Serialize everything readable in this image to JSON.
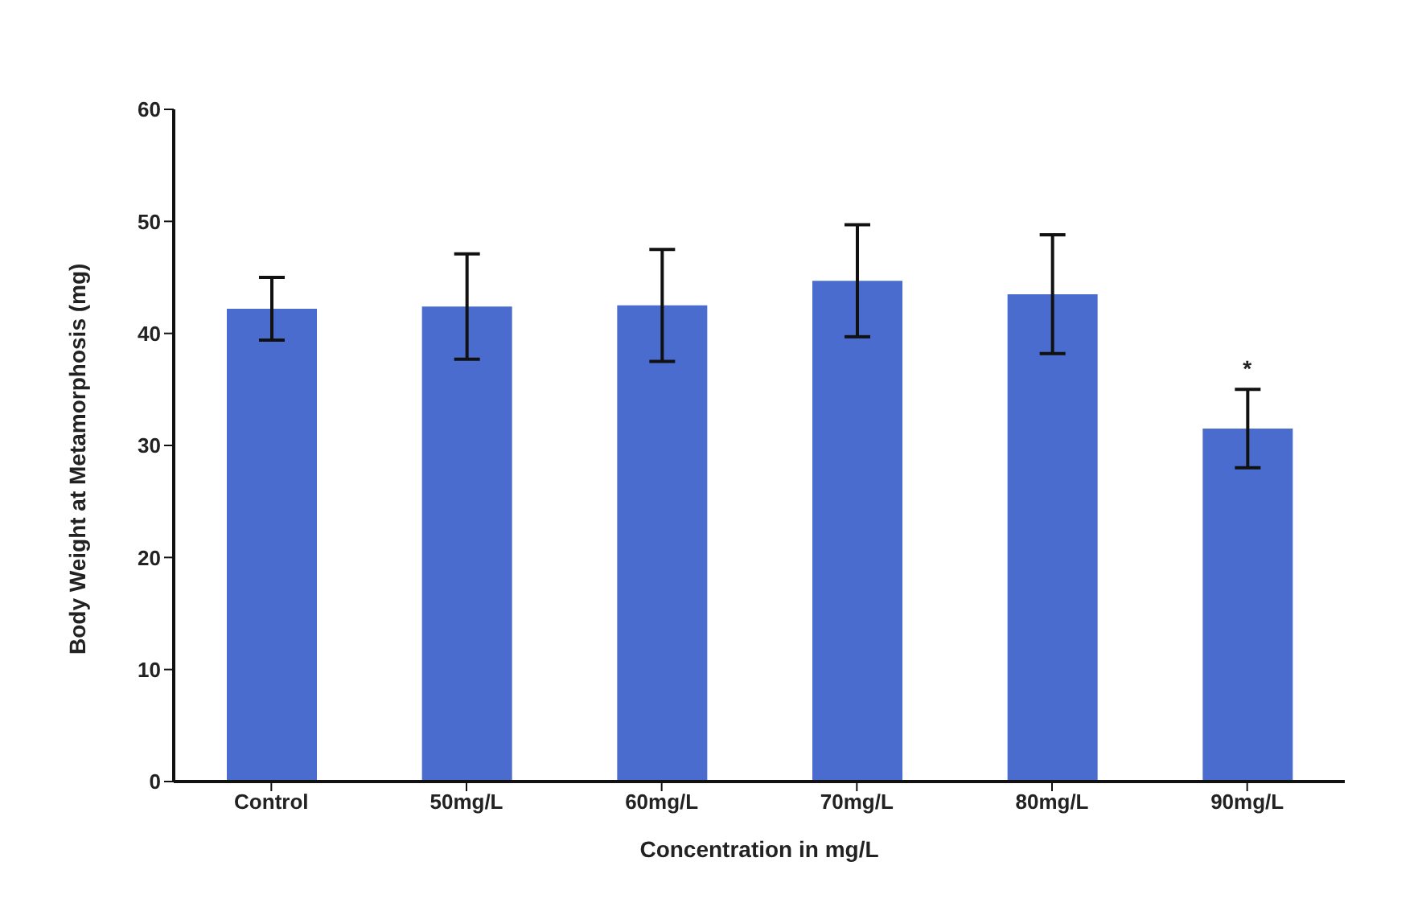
{
  "chart_data": {
    "type": "bar",
    "xlabel": "Concentration in mg/L",
    "ylabel": "Body Weight at Metamorphosis (mg)",
    "categories": [
      "Control",
      "50mg/L",
      "60mg/L",
      "70mg/L",
      "80mg/L",
      "90mg/L"
    ],
    "values": [
      42.2,
      42.4,
      42.5,
      44.7,
      43.5,
      31.5
    ],
    "errors": [
      2.8,
      4.7,
      5,
      5,
      5.3,
      3.5
    ],
    "color": "#4a6ccf",
    "ylim": [
      0,
      60
    ],
    "yticks": [
      0,
      10,
      20,
      30,
      40,
      50,
      60
    ],
    "annotations": [
      {
        "text": "*",
        "x": "90mg/L",
        "y": 35
      }
    ],
    "grid": false,
    "legend": false
  }
}
